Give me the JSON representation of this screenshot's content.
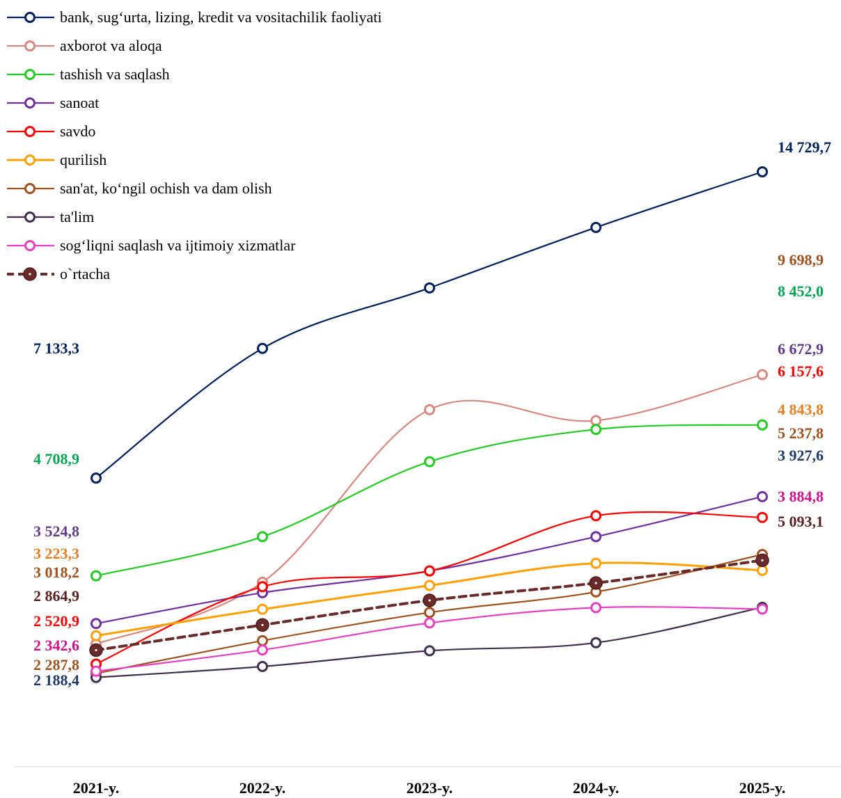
{
  "chart_data": {
    "type": "line",
    "categories": [
      "2021-y.",
      "2022-y.",
      "2023-y.",
      "2024-y.",
      "2025-y."
    ],
    "title": "",
    "xlabel": "",
    "ylabel": "",
    "ylim": [
      1200,
      15900
    ],
    "grid": false,
    "legend_position": "top-left",
    "series": [
      {
        "name": "bank, sug‘urta, lizing, kredit va vositachilik faoliyati",
        "color": "#002060",
        "label_color": "#002060",
        "dashed": false,
        "values": [
          7133.3,
          10350,
          11850,
          13350,
          14729.7
        ],
        "start_label": "7 133,3",
        "end_label": "14 729,7"
      },
      {
        "name": "axborot va aloqa",
        "color": "#D98880",
        "label_color": "#A0521E",
        "dashed": false,
        "values": [
          3018.2,
          4550,
          8830,
          8560,
          9698.9
        ],
        "start_label": "3 018,2",
        "end_label": "9 698,9"
      },
      {
        "name": "tashish va saqlash",
        "color": "#22CC22",
        "label_color": "#00A650",
        "dashed": false,
        "values": [
          4708.9,
          5680,
          7540,
          8340,
          8452.0
        ],
        "start_label": "4 708,9",
        "end_label": "8 452,0"
      },
      {
        "name": "sanoat",
        "color": "#7030A0",
        "label_color": "#5E3C8C",
        "dashed": false,
        "values": [
          3524.8,
          4290,
          4830,
          5680,
          6672.9
        ],
        "start_label": "3 524,8",
        "end_label": "6 672,9"
      },
      {
        "name": "savdo",
        "color": "#FF0000",
        "label_color": "#FF0000",
        "dashed": false,
        "values": [
          2520.9,
          4440,
          4830,
          6200,
          6157.6
        ],
        "start_label": "2 520,9",
        "end_label": "6 157,6"
      },
      {
        "name": "qurilish",
        "color": "#FFA000",
        "label_color": "#E67E22",
        "dashed": false,
        "values": [
          3223.3,
          3880,
          4470,
          5020,
          4843.8
        ],
        "start_label": "3 223,3",
        "end_label": "4 843,8"
      },
      {
        "name": "san'at, ko‘ngil ochish va dam olish",
        "color": "#A0521E",
        "label_color": "#A0521E",
        "dashed": false,
        "values": [
          2287.8,
          3100,
          3800,
          4310,
          5237.8
        ],
        "start_label": "2 287,8",
        "end_label": "5 237,8"
      },
      {
        "name": "ta'lim",
        "color": "#403050",
        "label_color": "#1F3A6B",
        "dashed": false,
        "values": [
          2188.4,
          2460,
          2850,
          3050,
          3927.6
        ],
        "start_label": "2 188,4",
        "end_label": "3 927,6"
      },
      {
        "name": "sog‘liqni saqlash va ijtimoiy xizmatlar",
        "color": "#E83FC0",
        "label_color": "#D0108E",
        "dashed": false,
        "values": [
          2342.6,
          2870,
          3540,
          3920,
          3884.8
        ],
        "start_label": "2 342,6",
        "end_label": "3 884,8"
      },
      {
        "name": "o`rtacha",
        "color": "#6B2A2A",
        "label_color": "#5A2222",
        "dashed": true,
        "values": [
          2864.9,
          3490,
          4100,
          4530,
          5093.1
        ],
        "start_label": "2 864,9",
        "end_label": "5 093,1"
      }
    ]
  }
}
